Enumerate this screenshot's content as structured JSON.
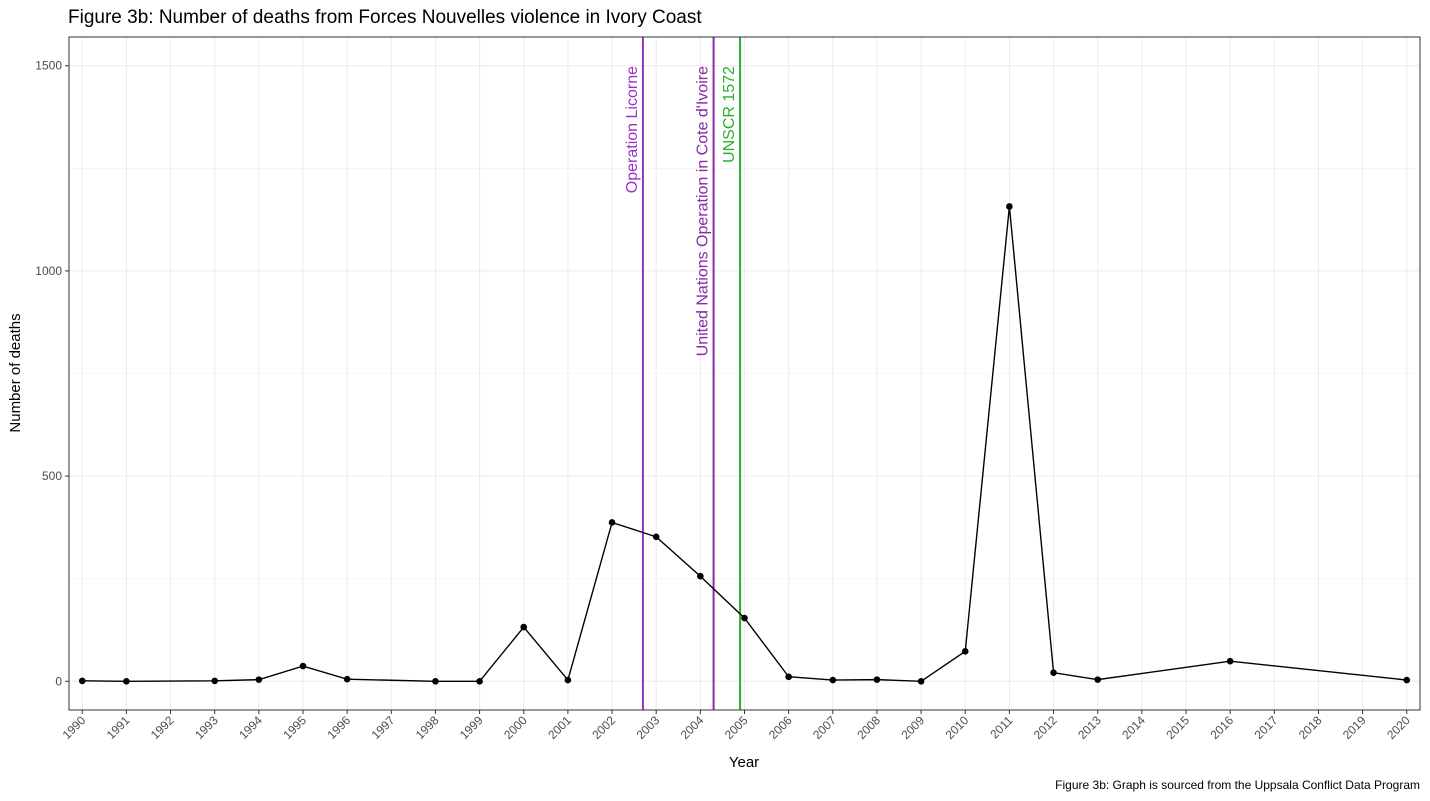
{
  "chart_data": {
    "type": "line",
    "title": "Figure 3b: Number of deaths from Forces Nouvelles violence in Ivory Coast",
    "caption": "Figure 3b: Graph is sourced from the Uppsala Conflict Data Program",
    "xlabel": "Year",
    "ylabel": "Number of deaths",
    "xlim": [
      1989.7,
      2020.3
    ],
    "ylim": [
      -70,
      1570
    ],
    "x_ticks": [
      1990,
      1991,
      1992,
      1993,
      1994,
      1995,
      1996,
      1997,
      1998,
      1999,
      2000,
      2001,
      2002,
      2003,
      2004,
      2005,
      2006,
      2007,
      2008,
      2009,
      2010,
      2011,
      2012,
      2013,
      2014,
      2015,
      2016,
      2017,
      2018,
      2019,
      2020
    ],
    "y_ticks": [
      0,
      500,
      1000,
      1500
    ],
    "grid": true,
    "legend": "none",
    "series": [
      {
        "color": "#000000",
        "points": [
          [
            1990,
            1
          ],
          [
            1991,
            0
          ],
          [
            1993,
            1
          ],
          [
            1994,
            4
          ],
          [
            1995,
            37
          ],
          [
            1996,
            5
          ],
          [
            1998,
            0
          ],
          [
            1999,
            0
          ],
          [
            2000,
            132
          ],
          [
            2001,
            3
          ],
          [
            2002,
            387
          ],
          [
            2003,
            352
          ],
          [
            2004,
            256
          ],
          [
            2005,
            154
          ],
          [
            2006,
            11
          ],
          [
            2007,
            3
          ],
          [
            2008,
            4
          ],
          [
            2009,
            0
          ],
          [
            2010,
            73
          ],
          [
            2011,
            1157
          ],
          [
            2012,
            21
          ],
          [
            2013,
            4
          ],
          [
            2016,
            49
          ],
          [
            2020,
            3
          ]
        ]
      }
    ],
    "vlines": [
      {
        "x": 2002.7,
        "label": "Operation Licorne",
        "color": "#9b30c8"
      },
      {
        "x": 2004.3,
        "label": "United Nations Operation in Cote d'Ivoire",
        "color": "#8a2aa8"
      },
      {
        "x": 2004.9,
        "label": "UNSCR 1572",
        "color": "#2bb02b"
      }
    ]
  }
}
